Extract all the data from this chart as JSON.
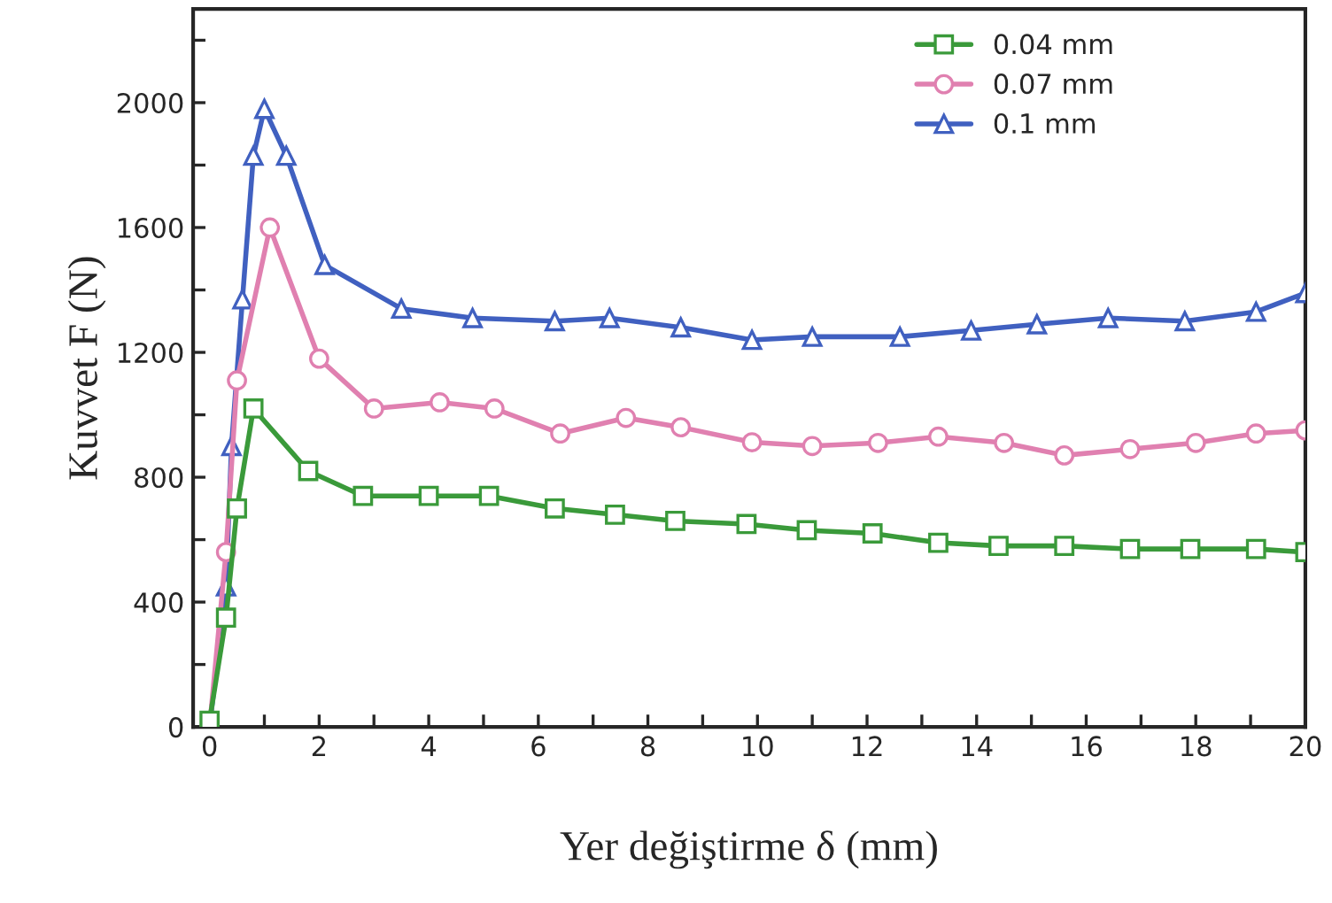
{
  "chart_data": {
    "type": "line",
    "xlabel": "Yer değiştirme δ (mm)",
    "ylabel": "Kuvvet F (N)",
    "xlim": [
      -0.3,
      20
    ],
    "ylim": [
      0,
      2300
    ],
    "xticks": [
      0,
      {
        "value": 1,
        "label": null
      },
      2,
      {
        "value": 3,
        "label": null
      },
      4,
      {
        "value": 5,
        "label": null
      },
      6,
      {
        "value": 7,
        "label": null
      },
      8,
      {
        "value": 9,
        "label": null
      },
      10,
      {
        "value": 11,
        "label": null
      },
      12,
      {
        "value": 13,
        "label": null
      },
      14,
      {
        "value": 15,
        "label": null
      },
      16,
      {
        "value": 17,
        "label": null
      },
      18,
      {
        "value": 19,
        "label": null
      },
      20
    ],
    "yticks": [
      0,
      {
        "value": 200,
        "label": null
      },
      400,
      {
        "value": 600,
        "label": null
      },
      800,
      {
        "value": 1000,
        "label": null
      },
      1200,
      {
        "value": 1400,
        "label": null
      },
      1600,
      {
        "value": 1800,
        "label": null
      },
      2000,
      {
        "value": 2200,
        "label": null
      }
    ],
    "grid": false,
    "legend": "top right",
    "series": [
      {
        "name": "0.04 mm",
        "color": "#3a9a3a",
        "marker": "square",
        "x": [
          0,
          0.3,
          0.5,
          0.8,
          1.8,
          2.8,
          4.0,
          5.1,
          6.3,
          7.4,
          8.5,
          9.8,
          10.9,
          12.1,
          13.3,
          14.4,
          15.6,
          16.8,
          17.9,
          19.1,
          20
        ],
        "values": [
          20,
          350,
          700,
          1020,
          820,
          740,
          740,
          740,
          700,
          680,
          660,
          650,
          630,
          620,
          590,
          580,
          580,
          570,
          570,
          570,
          560
        ]
      },
      {
        "name": "0.07 mm",
        "color": "#e080b0",
        "marker": "circle",
        "x": [
          0,
          0.3,
          0.5,
          1.1,
          2.0,
          3.0,
          4.2,
          5.2,
          6.4,
          7.6,
          8.6,
          9.9,
          11.0,
          12.2,
          13.3,
          14.5,
          15.6,
          16.8,
          18.0,
          19.1,
          20
        ],
        "values": [
          0,
          560,
          1110,
          1600,
          1180,
          1020,
          1040,
          1020,
          940,
          990,
          960,
          912,
          900,
          910,
          930,
          910,
          870,
          890,
          910,
          940,
          950
        ]
      },
      {
        "name": "0.1 mm",
        "color": "#4060c0",
        "marker": "triangle",
        "x": [
          0,
          0.3,
          0.4,
          0.6,
          0.8,
          1.0,
          1.4,
          2.1,
          3.5,
          4.8,
          6.3,
          7.3,
          8.6,
          9.9,
          11.0,
          12.6,
          13.9,
          15.1,
          16.4,
          17.8,
          19.1,
          20
        ],
        "values": [
          0,
          450,
          900,
          1370,
          1830,
          1980,
          1830,
          1480,
          1340,
          1310,
          1300,
          1310,
          1280,
          1240,
          1250,
          1250,
          1270,
          1290,
          1310,
          1300,
          1330,
          1390
        ]
      }
    ]
  }
}
